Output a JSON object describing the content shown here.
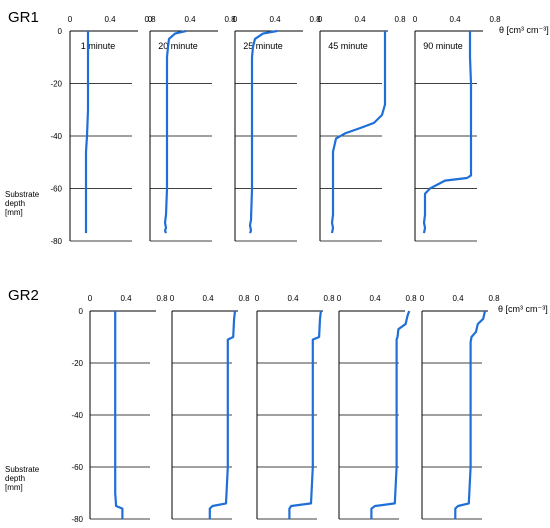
{
  "chart_data": [
    {
      "type": "line",
      "group": "GR1",
      "ylabel": [
        "Substrate",
        "depth",
        "[mm]"
      ],
      "xlabel": "θ [cm³ cm⁻³]",
      "xlim": [
        0,
        0.8
      ],
      "ylim": [
        -80,
        0
      ],
      "x_ticks": [
        "0",
        "0.4",
        "0.8"
      ],
      "y_ticks": [
        "0",
        "-20",
        "-40",
        "-60",
        "-80"
      ],
      "grid": "horizontal",
      "line_color": "#1f6fd8",
      "panels": [
        {
          "title": "1 minute",
          "series": [
            {
              "x": [
                0.18,
                0.18,
                0.18,
                0.18,
                0.17,
                0.16,
                0.16,
                0.16,
                0.16,
                0.16,
                0.16
              ],
              "y": [
                0,
                -10,
                -20,
                -30,
                -40,
                -46,
                -50,
                -60,
                -70,
                -75,
                -77
              ]
            }
          ]
        },
        {
          "title": "20 minute",
          "series": [
            {
              "x": [
                0.36,
                0.25,
                0.19,
                0.18,
                0.17,
                0.17,
                0.17,
                0.17,
                0.16,
                0.15,
                0.16,
                0.15,
                0.16
              ],
              "y": [
                0,
                -1,
                -3,
                -6,
                -10,
                -20,
                -40,
                -60,
                -70,
                -73,
                -75,
                -76,
                -77
              ]
            }
          ]
        },
        {
          "title": "25 minute",
          "series": [
            {
              "x": [
                0.42,
                0.28,
                0.2,
                0.18,
                0.17,
                0.17,
                0.17,
                0.17,
                0.16,
                0.15,
                0.16,
                0.15
              ],
              "y": [
                0,
                -1,
                -3,
                -6,
                -10,
                -20,
                -40,
                -60,
                -72,
                -74,
                -76,
                -77
              ]
            }
          ]
        },
        {
          "title": "45 minute",
          "series": [
            {
              "x": [
                0.65,
                0.65,
                0.65,
                0.65,
                0.62,
                0.54,
                0.4,
                0.25,
                0.16,
                0.13,
                0.13,
                0.13,
                0.12,
                0.13,
                0.12
              ],
              "y": [
                0,
                -10,
                -20,
                -28,
                -32,
                -35,
                -37,
                -39,
                -41,
                -46,
                -55,
                -70,
                -73,
                -75,
                -77
              ]
            }
          ]
        },
        {
          "title": "90 minute",
          "series": [
            {
              "x": [
                0.55,
                0.55,
                0.56,
                0.56,
                0.56,
                0.56,
                0.52,
                0.3,
                0.15,
                0.1,
                0.1,
                0.09,
                0.1,
                0.09
              ],
              "y": [
                0,
                -10,
                -20,
                -40,
                -50,
                -55,
                -56,
                -57,
                -60,
                -62,
                -70,
                -73,
                -75,
                -77
              ]
            }
          ]
        }
      ]
    },
    {
      "type": "line",
      "group": "GR2",
      "ylabel": [
        "Substrate",
        "depth",
        "[mm]"
      ],
      "xlabel": "θ [cm³ cm⁻³]",
      "xlim": [
        0,
        0.8
      ],
      "ylim": [
        -80,
        0
      ],
      "x_ticks": [
        "0",
        "0.4",
        "0.8"
      ],
      "y_ticks": [
        "0",
        "-20",
        "-40",
        "-60",
        "-80"
      ],
      "grid": "horizontal",
      "line_color": "#1f6fd8",
      "panels": [
        {
          "title": "",
          "series": [
            {
              "x": [
                0.28,
                0.28,
                0.28,
                0.28,
                0.28,
                0.29,
                0.36,
                0.36
              ],
              "y": [
                0,
                -10,
                -30,
                -50,
                -70,
                -75,
                -76,
                -80
              ]
            }
          ]
        },
        {
          "title": "",
          "series": [
            {
              "x": [
                0.7,
                0.69,
                0.68,
                0.62,
                0.62,
                0.62,
                0.62,
                0.6,
                0.45,
                0.42,
                0.42
              ],
              "y": [
                0,
                -3,
                -10,
                -11,
                -20,
                -40,
                -60,
                -74,
                -75,
                -76,
                -80
              ]
            }
          ]
        },
        {
          "title": "",
          "series": [
            {
              "x": [
                0.71,
                0.7,
                0.69,
                0.62,
                0.62,
                0.62,
                0.62,
                0.6,
                0.38,
                0.36,
                0.36
              ],
              "y": [
                0,
                -3,
                -10,
                -11,
                -20,
                -40,
                -60,
                -74,
                -75,
                -76,
                -80
              ]
            }
          ]
        },
        {
          "title": "",
          "series": [
            {
              "x": [
                0.78,
                0.76,
                0.74,
                0.66,
                0.65,
                0.64,
                0.64,
                0.64,
                0.64,
                0.62,
                0.4,
                0.36,
                0.36
              ],
              "y": [
                0,
                -2,
                -5,
                -7,
                -10,
                -11,
                -15,
                -40,
                -60,
                -74,
                -75,
                -76,
                -80
              ]
            }
          ]
        },
        {
          "title": "",
          "series": [
            {
              "x": [
                0.7,
                0.68,
                0.62,
                0.6,
                0.55,
                0.54,
                0.54,
                0.54,
                0.54,
                0.52,
                0.4,
                0.37,
                0.37
              ],
              "y": [
                0,
                -3,
                -5,
                -8,
                -10,
                -12,
                -20,
                -40,
                -60,
                -74,
                -75,
                -76,
                -80
              ]
            }
          ]
        }
      ]
    }
  ]
}
